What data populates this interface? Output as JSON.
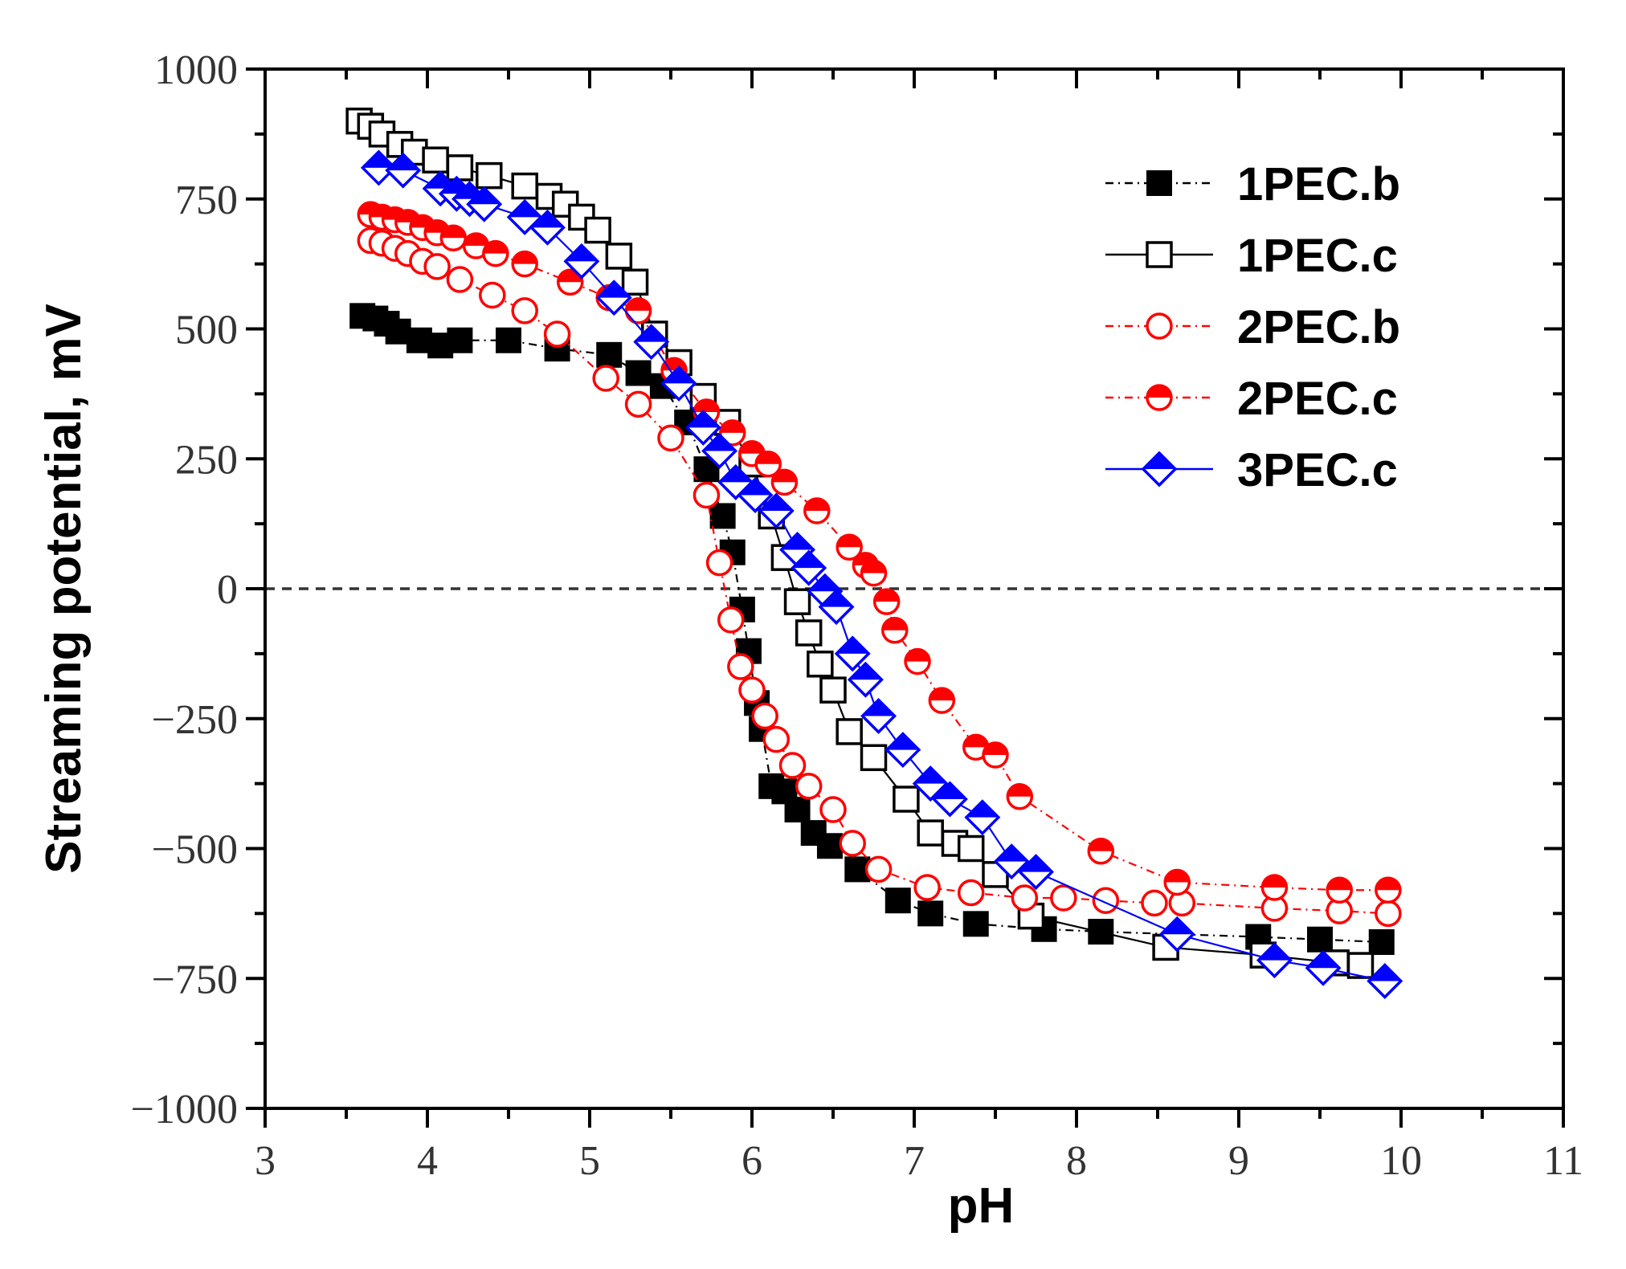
{
  "chart_data": {
    "type": "scatter",
    "xlabel": "pH",
    "ylabel": "Streaming potential, mV",
    "xlim": [
      3,
      11
    ],
    "ylim": [
      -1000,
      1000
    ],
    "xticks": [
      "3",
      "4",
      "5",
      "6",
      "7",
      "8",
      "9",
      "10",
      "11"
    ],
    "yticks": [
      "1000",
      "750",
      "500",
      "250",
      "0",
      "−250",
      "−500",
      "−750",
      "−1000"
    ],
    "zero_line": true,
    "legend_position": "top-right",
    "series": [
      {
        "name": "1PEC.b",
        "color": "#000000",
        "marker": "square-filled",
        "line": "dash-dot",
        "x": [
          3.6,
          3.68,
          3.75,
          3.82,
          3.95,
          4.08,
          4.2,
          4.5,
          4.8,
          5.12,
          5.3,
          5.45,
          5.6,
          5.72,
          5.82,
          5.88,
          5.94,
          5.98,
          6.03,
          6.06,
          6.12,
          6.2,
          6.28,
          6.38,
          6.48,
          6.65,
          6.9,
          7.1,
          7.38,
          7.8,
          8.15,
          9.12,
          9.5,
          9.88
        ],
        "y": [
          525,
          520,
          510,
          495,
          478,
          468,
          478,
          478,
          462,
          450,
          415,
          390,
          320,
          230,
          140,
          70,
          -40,
          -120,
          -220,
          -270,
          -380,
          -390,
          -425,
          -470,
          -495,
          -540,
          -600,
          -625,
          -645,
          -655,
          -660,
          -670,
          -675,
          -680
        ]
      },
      {
        "name": "1PEC.c",
        "color": "#000000",
        "marker": "square-open",
        "line": "solid",
        "x": [
          3.58,
          3.65,
          3.72,
          3.83,
          3.92,
          4.05,
          4.2,
          4.38,
          4.6,
          4.75,
          4.85,
          4.95,
          5.05,
          5.18,
          5.28,
          5.4,
          5.55,
          5.7,
          5.85,
          6.0,
          6.12,
          6.2,
          6.28,
          6.35,
          6.42,
          6.5,
          6.6,
          6.75,
          6.95,
          7.1,
          7.25,
          7.35,
          7.5,
          7.72,
          8.55,
          9.15,
          9.6,
          9.75
        ],
        "y": [
          900,
          890,
          875,
          855,
          840,
          825,
          810,
          795,
          775,
          755,
          740,
          715,
          690,
          640,
          590,
          490,
          435,
          370,
          320,
          240,
          140,
          60,
          -25,
          -85,
          -145,
          -195,
          -275,
          -325,
          -405,
          -470,
          -490,
          -500,
          -550,
          -630,
          -690,
          -705,
          -720,
          -725
        ]
      },
      {
        "name": "2PEC.b",
        "color": "#ff0000",
        "marker": "circle-open",
        "line": "dash-dot",
        "x": [
          3.65,
          3.72,
          3.8,
          3.88,
          3.97,
          4.06,
          4.2,
          4.4,
          4.6,
          4.8,
          5.1,
          5.3,
          5.5,
          5.72,
          5.8,
          5.87,
          5.93,
          6.0,
          6.08,
          6.15,
          6.25,
          6.35,
          6.5,
          6.62,
          6.78,
          7.08,
          7.35,
          7.68,
          7.92,
          8.18,
          8.48,
          8.65,
          9.22,
          9.62,
          9.92
        ],
        "y": [
          670,
          665,
          655,
          645,
          630,
          620,
          595,
          565,
          535,
          490,
          405,
          355,
          290,
          180,
          50,
          -60,
          -150,
          -195,
          -245,
          -290,
          -340,
          -380,
          -425,
          -490,
          -540,
          -575,
          -585,
          -595,
          -595,
          -600,
          -605,
          -605,
          -615,
          -620,
          -625
        ]
      },
      {
        "name": "2PEC.c",
        "color": "#ff0000",
        "marker": "circle-half",
        "line": "dash-dot",
        "x": [
          3.65,
          3.72,
          3.8,
          3.88,
          3.97,
          4.06,
          4.16,
          4.3,
          4.42,
          4.6,
          4.88,
          5.12,
          5.3,
          5.52,
          5.72,
          5.88,
          6.0,
          6.1,
          6.2,
          6.4,
          6.6,
          6.7,
          6.75,
          6.83,
          6.88,
          7.02,
          7.17,
          7.38,
          7.5,
          7.65,
          8.15,
          8.62,
          9.22,
          9.62,
          9.92
        ],
        "y": [
          720,
          715,
          710,
          705,
          695,
          685,
          675,
          660,
          645,
          625,
          590,
          560,
          535,
          420,
          340,
          300,
          260,
          240,
          205,
          150,
          80,
          45,
          30,
          -25,
          -80,
          -140,
          -215,
          -305,
          -320,
          -400,
          -505,
          -565,
          -575,
          -580,
          -580
        ]
      },
      {
        "name": "3PEC.c",
        "color": "#0000ff",
        "marker": "diamond-half",
        "line": "solid",
        "x": [
          3.7,
          3.85,
          4.08,
          4.18,
          4.26,
          4.35,
          4.6,
          4.74,
          4.95,
          5.15,
          5.38,
          5.55,
          5.7,
          5.8,
          5.9,
          6.02,
          6.15,
          6.28,
          6.35,
          6.45,
          6.52,
          6.62,
          6.7,
          6.78,
          6.93,
          7.1,
          7.22,
          7.42,
          7.6,
          7.75,
          8.62,
          9.22,
          9.52,
          9.9
        ],
        "y": [
          810,
          805,
          770,
          760,
          750,
          740,
          715,
          695,
          630,
          560,
          475,
          395,
          310,
          265,
          205,
          180,
          150,
          75,
          40,
          -5,
          -35,
          -125,
          -175,
          -245,
          -310,
          -375,
          -405,
          -440,
          -525,
          -545,
          -665,
          -715,
          -730,
          -755
        ]
      }
    ]
  }
}
